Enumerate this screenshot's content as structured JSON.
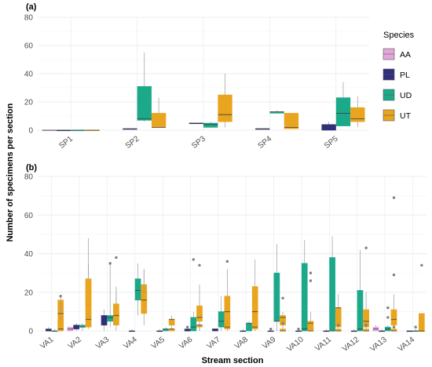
{
  "ylabel": "Number of specimens per section",
  "xlabel": "Stream section",
  "legend": {
    "title": "Species",
    "position": "right",
    "entries": [
      {
        "name": "AA",
        "color": "#e2a6da"
      },
      {
        "name": "PL",
        "color": "#2f2f7e"
      },
      {
        "name": "UD",
        "color": "#1ca98a"
      },
      {
        "name": "UT",
        "color": "#e9a51f"
      }
    ]
  },
  "chart_data": [
    {
      "type": "box",
      "panel": "(a)",
      "ylim": [
        0,
        80
      ],
      "yticks": [
        0,
        20,
        40,
        60,
        80
      ],
      "grid": true,
      "categories": [
        "SP1",
        "SP2",
        "SP3",
        "SP4",
        "SP5"
      ],
      "series": [
        {
          "name": "AA",
          "boxes": [
            {
              "cat": "SP1",
              "min": 0,
              "q1": 0,
              "median": 0,
              "q3": 0,
              "max": 0,
              "outliers": []
            },
            null,
            null,
            null,
            null
          ]
        },
        {
          "name": "PL",
          "boxes": [
            {
              "cat": "SP1",
              "min": 0,
              "q1": 0,
              "median": 0,
              "q3": 0,
              "max": 0,
              "outliers": []
            },
            {
              "cat": "SP2",
              "min": 1,
              "q1": 1,
              "median": 1,
              "q3": 1,
              "max": 1,
              "outliers": []
            },
            {
              "cat": "SP3",
              "min": 5,
              "q1": 5,
              "median": 5,
              "q3": 5,
              "max": 5,
              "outliers": []
            },
            {
              "cat": "SP4",
              "min": 1,
              "q1": 1,
              "median": 1,
              "q3": 1,
              "max": 1,
              "outliers": []
            },
            {
              "cat": "SP5",
              "min": 0,
              "q1": 0,
              "median": 2,
              "q3": 4,
              "max": 6,
              "outliers": []
            }
          ]
        },
        {
          "name": "UD",
          "boxes": [
            {
              "cat": "SP1",
              "min": 0,
              "q1": 0,
              "median": 0,
              "q3": 0,
              "max": 0,
              "outliers": []
            },
            {
              "cat": "SP2",
              "min": 6,
              "q1": 7,
              "median": 8,
              "q3": 31,
              "max": 55,
              "outliers": []
            },
            {
              "cat": "SP3",
              "min": 2,
              "q1": 2,
              "median": 4,
              "q3": 5,
              "max": 6,
              "outliers": []
            },
            {
              "cat": "SP4",
              "min": 12,
              "q1": 12,
              "median": 13,
              "q3": 13,
              "max": 14,
              "outliers": []
            },
            {
              "cat": "SP5",
              "min": 3,
              "q1": 3,
              "median": 12,
              "q3": 23,
              "max": 34,
              "outliers": []
            }
          ]
        },
        {
          "name": "UT",
          "boxes": [
            {
              "cat": "SP1",
              "min": 0,
              "q1": 0,
              "median": 0,
              "q3": 0,
              "max": 0,
              "outliers": []
            },
            {
              "cat": "SP2",
              "min": 2,
              "q1": 2,
              "median": 2,
              "q3": 12,
              "max": 23,
              "outliers": []
            },
            {
              "cat": "SP3",
              "min": 2,
              "q1": 6,
              "median": 11,
              "q3": 25,
              "max": 40,
              "outliers": []
            },
            {
              "cat": "SP4",
              "min": 1,
              "q1": 1,
              "median": 2,
              "q3": 12,
              "max": 12,
              "outliers": []
            },
            {
              "cat": "SP5",
              "min": 2,
              "q1": 6,
              "median": 8,
              "q3": 16,
              "max": 24,
              "outliers": []
            }
          ]
        }
      ]
    },
    {
      "type": "box",
      "panel": "(b)",
      "ylim": [
        0,
        80
      ],
      "yticks": [
        0,
        20,
        40,
        60,
        80
      ],
      "grid": true,
      "categories": [
        "VA1",
        "VA2",
        "VA3",
        "VA4",
        "VA5",
        "VA6",
        "VA7",
        "VA8",
        "VA9",
        "VA10",
        "VA11",
        "VA12",
        "VA13",
        "VA14"
      ],
      "series": [
        {
          "name": "AA",
          "boxes": [
            null,
            {
              "cat": "VA2",
              "min": 0,
              "q1": 0,
              "median": 1,
              "q3": 2,
              "max": 2,
              "outliers": []
            },
            null,
            null,
            null,
            null,
            null,
            null,
            null,
            null,
            null,
            null,
            {
              "cat": "VA13",
              "min": 0,
              "q1": 0,
              "median": 1,
              "q3": 2,
              "max": 3,
              "outliers": []
            },
            null
          ]
        },
        {
          "name": "PL",
          "boxes": [
            {
              "cat": "VA1",
              "min": 0,
              "q1": 0,
              "median": 0,
              "q3": 1,
              "max": 2,
              "outliers": []
            },
            {
              "cat": "VA2",
              "min": 0,
              "q1": 1,
              "median": 2,
              "q3": 3,
              "max": 4,
              "outliers": []
            },
            {
              "cat": "VA3",
              "min": 0,
              "q1": 3,
              "median": 5,
              "q3": 8,
              "max": 11,
              "outliers": []
            },
            {
              "cat": "VA4",
              "min": 0,
              "q1": 0,
              "median": 0,
              "q3": 0,
              "max": 1,
              "outliers": []
            },
            {
              "cat": "VA5",
              "min": 0,
              "q1": 0,
              "median": 0,
              "q3": 0,
              "max": 1,
              "outliers": []
            },
            {
              "cat": "VA6",
              "min": 0,
              "q1": 0,
              "median": 0,
              "q3": 1,
              "max": 2,
              "outliers": [
                2
              ]
            },
            {
              "cat": "VA7",
              "min": 0,
              "q1": 0,
              "median": 1,
              "q3": 1,
              "max": 1,
              "outliers": []
            },
            {
              "cat": "VA8",
              "min": 0,
              "q1": 0,
              "median": 0,
              "q3": 0,
              "max": 1,
              "outliers": []
            },
            {
              "cat": "VA9",
              "min": 0,
              "q1": 0,
              "median": 0,
              "q3": 0,
              "max": 1,
              "outliers": [
                1
              ]
            },
            {
              "cat": "VA10",
              "min": 0,
              "q1": 0,
              "median": 0,
              "q3": 0,
              "max": 1,
              "outliers": [
                1
              ]
            },
            {
              "cat": "VA11",
              "min": 0,
              "q1": 0,
              "median": 0,
              "q3": 0,
              "max": 1,
              "outliers": []
            },
            {
              "cat": "VA12",
              "min": 0,
              "q1": 0,
              "median": 0,
              "q3": 0,
              "max": 1,
              "outliers": []
            },
            {
              "cat": "VA13",
              "min": 0,
              "q1": 0,
              "median": 0,
              "q3": 0,
              "max": 1,
              "outliers": []
            },
            {
              "cat": "VA14",
              "min": 0,
              "q1": 0,
              "median": 0,
              "q3": 0,
              "max": 0,
              "outliers": []
            }
          ]
        },
        {
          "name": "UD",
          "boxes": [
            {
              "cat": "VA1",
              "min": 0,
              "q1": 0,
              "median": 0,
              "q3": 0,
              "max": 1,
              "outliers": []
            },
            {
              "cat": "VA2",
              "min": 0,
              "q1": 2,
              "median": 2,
              "q3": 3,
              "max": 4,
              "outliers": []
            },
            {
              "cat": "VA3",
              "min": 2,
              "q1": 5,
              "median": 7,
              "q3": 8,
              "max": 35,
              "outliers": [
                35
              ]
            },
            {
              "cat": "VA4",
              "min": 8,
              "q1": 16,
              "median": 21,
              "q3": 27,
              "max": 35,
              "outliers": []
            },
            {
              "cat": "VA5",
              "min": 0,
              "q1": 0,
              "median": 1,
              "q3": 1,
              "max": 2,
              "outliers": []
            },
            {
              "cat": "VA6",
              "min": 0,
              "q1": 0,
              "median": 2,
              "q3": 7,
              "max": 10,
              "outliers": [
                37
              ]
            },
            {
              "cat": "VA7",
              "min": 0,
              "q1": 2,
              "median": 5,
              "q3": 10,
              "max": 18,
              "outliers": []
            },
            {
              "cat": "VA8",
              "min": 0,
              "q1": 0,
              "median": 4,
              "q3": 4,
              "max": 5,
              "outliers": []
            },
            {
              "cat": "VA9",
              "min": 0,
              "q1": 5,
              "median": 5,
              "q3": 30,
              "max": 45,
              "outliers": []
            },
            {
              "cat": "VA10",
              "min": 0,
              "q1": 0,
              "median": 1,
              "q3": 35,
              "max": 47,
              "outliers": []
            },
            {
              "cat": "VA11",
              "min": 0,
              "q1": 0,
              "median": 0,
              "q3": 38,
              "max": 49,
              "outliers": []
            },
            {
              "cat": "VA12",
              "min": 0,
              "q1": 0,
              "median": 1,
              "q3": 21,
              "max": 42,
              "outliers": []
            },
            {
              "cat": "VA13",
              "min": 0,
              "q1": 0,
              "median": 1,
              "q3": 2,
              "max": 3,
              "outliers": [
                12,
                7
              ]
            },
            {
              "cat": "VA14",
              "min": 0,
              "q1": 0,
              "median": 0,
              "q3": 0,
              "max": 1,
              "outliers": [
                2
              ]
            }
          ]
        },
        {
          "name": "UT",
          "boxes": [
            {
              "cat": "VA1",
              "min": 0,
              "q1": 3,
              "median": 9,
              "q3": 16,
              "max": 18,
              "outliers": []
            },
            {
              "cat": "VA2",
              "min": 10,
              "q1": 13,
              "median": 22,
              "q3": 26,
              "max": 35,
              "outliers": []
            },
            {
              "cat": "VA3",
              "min": 5,
              "q1": 6,
              "median": 10,
              "q3": 10,
              "max": 20,
              "outliers": []
            },
            {
              "cat": "VA4",
              "min": 10,
              "q1": 15,
              "median": 20,
              "q3": 24,
              "max": 32,
              "outliers": []
            },
            {
              "cat": "VA5",
              "min": 0,
              "q1": 3,
              "median": 6,
              "q3": 6,
              "max": 8,
              "outliers": []
            },
            {
              "cat": "VA6",
              "min": 0,
              "q1": 5,
              "median": 7,
              "q3": 13,
              "max": 24,
              "outliers": []
            },
            {
              "cat": "VA7",
              "min": 0,
              "q1": 3,
              "median": 10,
              "q3": 18,
              "max": 32,
              "outliers": []
            },
            {
              "cat": "VA8",
              "min": 0,
              "q1": 4,
              "median": 10,
              "q3": 23,
              "max": 37,
              "outliers": []
            },
            {
              "cat": "VA9",
              "min": 0,
              "q1": 3,
              "median": 7,
              "q3": 8,
              "max": 10,
              "outliers": [
                17
              ]
            },
            {
              "cat": "VA10",
              "min": 0,
              "q1": 1,
              "median": 4,
              "q3": 5,
              "max": 10,
              "outliers": [
                30
              ]
            },
            {
              "cat": "VA11",
              "min": 0,
              "q1": 2,
              "median": 12,
              "q3": 12,
              "max": 19,
              "outliers": []
            },
            {
              "cat": "VA12",
              "min": 0,
              "q1": 2,
              "median": 5,
              "q3": 11,
              "max": 20,
              "outliers": [
                43
              ]
            },
            {
              "cat": "VA13",
              "min": 0,
              "q1": 3,
              "median": 6,
              "q3": 11,
              "max": 19,
              "outliers": [
                69,
                29
              ]
            },
            {
              "cat": "VA14",
              "min": 0,
              "q1": 0,
              "median": 0,
              "q3": 9,
              "max": 9,
              "outliers": []
            }
          ]
        }
      ]
    }
  ],
  "extra_series": [
    {
      "panel": 1,
      "name": "UT",
      "boxes": [
        {
          "cat": "VA1",
          "min": 0,
          "q1": 0,
          "median": 1,
          "q3": 6,
          "max": 15,
          "outliers": [
            18
          ]
        },
        {
          "cat": "VA2",
          "min": 1,
          "q1": 2,
          "median": 6,
          "q3": 27,
          "max": 48,
          "outliers": []
        },
        {
          "cat": "VA3",
          "min": 0,
          "q1": 3,
          "median": 8,
          "q3": 14,
          "max": 23,
          "outliers": [
            38
          ]
        },
        {
          "cat": "VA4",
          "min": 3,
          "q1": 9,
          "median": 16,
          "q3": 20,
          "max": 32,
          "outliers": []
        },
        {
          "cat": "VA5",
          "min": 0,
          "q1": 0,
          "median": 1,
          "q3": 1,
          "max": 1,
          "outliers": []
        },
        {
          "cat": "VA6",
          "min": 0,
          "q1": 2,
          "median": 3,
          "q3": 3,
          "max": 4,
          "outliers": [
            34
          ]
        },
        {
          "cat": "VA7",
          "min": 0,
          "q1": 1,
          "median": 2,
          "q3": 4,
          "max": 5,
          "outliers": [
            36
          ]
        },
        {
          "cat": "VA8",
          "min": 0,
          "q1": 1,
          "median": 2,
          "q3": 4,
          "max": 4,
          "outliers": []
        },
        {
          "cat": "VA9",
          "min": 0,
          "q1": 0,
          "median": 0,
          "q3": 1,
          "max": 1,
          "outliers": [
            4
          ]
        },
        {
          "cat": "VA10",
          "min": 0,
          "q1": 0,
          "median": 0,
          "q3": 1,
          "max": 1,
          "outliers": [
            26
          ]
        },
        {
          "cat": "VA11",
          "min": 0,
          "q1": 0,
          "median": 0,
          "q3": 1,
          "max": 1,
          "outliers": [
            3
          ]
        },
        {
          "cat": "VA12",
          "min": 0,
          "q1": 0,
          "median": 0,
          "q3": 1,
          "max": 2,
          "outliers": [
            3
          ]
        },
        {
          "cat": "VA13",
          "min": 0,
          "q1": 0,
          "median": 0,
          "q3": 1,
          "max": 1,
          "outliers": [
            2
          ]
        },
        {
          "cat": "VA14",
          "min": 0,
          "q1": 0,
          "median": 0,
          "q3": 0,
          "max": 0,
          "outliers": [
            34
          ]
        }
      ]
    }
  ]
}
